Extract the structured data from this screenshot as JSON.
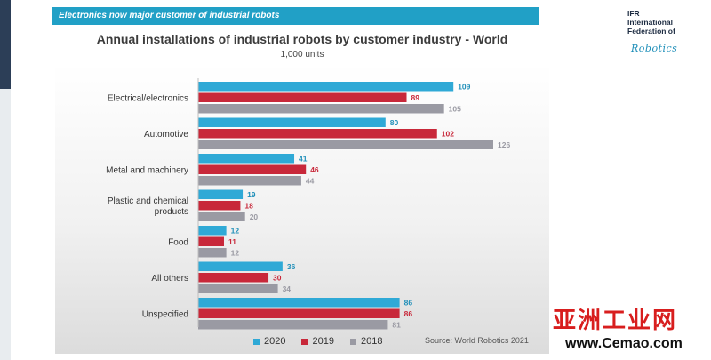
{
  "banner": "Electronics now major customer of industrial robots",
  "logo": {
    "line1": "IFR",
    "line2": "International",
    "line3": "Federation of",
    "script": "Robotics"
  },
  "chart_data": {
    "type": "bar",
    "orientation": "horizontal",
    "title": "Annual installations of industrial robots by customer industry - World",
    "subtitle": "1,000 units",
    "categories": [
      "Electrical/electronics",
      "Automotive",
      "Metal and machinery",
      "Plastic and chemical products",
      "Food",
      "All others",
      "Unspecified"
    ],
    "category_lines": [
      [
        "Electrical/electronics"
      ],
      [
        "Automotive"
      ],
      [
        "Metal and machinery"
      ],
      [
        "Plastic and chemical",
        "products"
      ],
      [
        "Food"
      ],
      [
        "All others"
      ],
      [
        "Unspecified"
      ]
    ],
    "series": [
      {
        "name": "2020",
        "color": "#2fa9d6",
        "values": [
          109,
          80,
          41,
          19,
          12,
          36,
          86
        ]
      },
      {
        "name": "2019",
        "color": "#c8283a",
        "values": [
          89,
          102,
          46,
          18,
          11,
          30,
          86
        ]
      },
      {
        "name": "2018",
        "color": "#9a9aa3",
        "values": [
          105,
          126,
          44,
          20,
          12,
          34,
          81
        ]
      }
    ],
    "xlim": [
      0,
      140
    ],
    "legend_position": "bottom",
    "source": "Source: World Robotics 2021"
  },
  "watermark": {
    "top": "亚洲工业网",
    "bottom": "www.Cemao.com"
  }
}
